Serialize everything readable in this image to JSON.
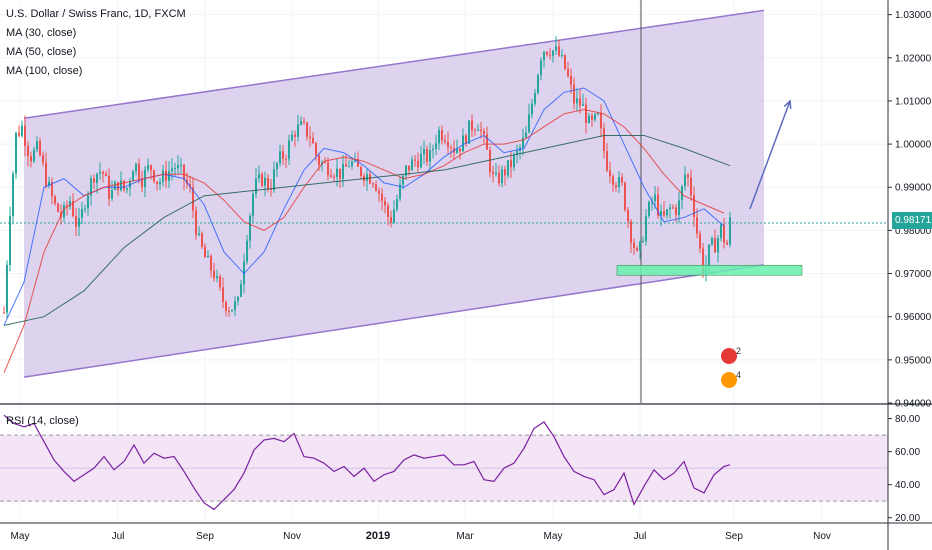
{
  "legend": {
    "title": "U.S. Dollar / Swiss Franc, 1D, FXCM",
    "ma30": "MA (30, close)",
    "ma50": "MA (50, close)",
    "ma100": "MA (100, close)",
    "rsi": "RSI (14, close)"
  },
  "last_price": "0.98171",
  "colors": {
    "up": "#26a69a",
    "down": "#ef5350",
    "ma30": "#2962ff",
    "ma50": "#e53935",
    "ma100": "#1b5e50",
    "channel_fill": "#d1c4e9",
    "channel_line": "#9575cd",
    "support_zone": "#69f0ae",
    "arrow": "#5c6bc0",
    "rsi_line": "#7b1fa2",
    "rsi_band": "#f3e5f5"
  },
  "event_badges": [
    "2",
    "4"
  ],
  "chart_data": {
    "type": "candlestick",
    "title": "U.S. Dollar / Swiss Franc, 1D, FXCM",
    "x_ticks": [
      "May",
      "Jul",
      "Sep",
      "Nov",
      "2019",
      "Mar",
      "May",
      "Jul",
      "Sep",
      "Nov"
    ],
    "y_ticks": [
      "1.03000",
      "1.02000",
      "1.01000",
      "1.00000",
      "0.99000",
      "0.98000",
      "0.97000",
      "0.96000",
      "0.95000",
      "0.94000"
    ],
    "ylim": [
      0.94,
      1.032
    ],
    "last_price": 0.98171,
    "close_path": [
      [
        0,
        0.961
      ],
      [
        6,
        0.985
      ],
      [
        12,
        1.002
      ],
      [
        18,
        1.004
      ],
      [
        26,
        0.997
      ],
      [
        34,
        0.999
      ],
      [
        42,
        0.992
      ],
      [
        50,
        0.986
      ],
      [
        58,
        0.983
      ],
      [
        66,
        0.987
      ],
      [
        74,
        0.98
      ],
      [
        82,
        0.988
      ],
      [
        90,
        0.993
      ],
      [
        98,
        0.994
      ],
      [
        106,
        0.988
      ],
      [
        114,
        0.991
      ],
      [
        122,
        0.989
      ],
      [
        130,
        0.996
      ],
      [
        138,
        0.992
      ],
      [
        146,
        0.995
      ],
      [
        154,
        0.991
      ],
      [
        162,
        0.993
      ],
      [
        170,
        0.995
      ],
      [
        178,
        0.993
      ],
      [
        186,
        0.989
      ],
      [
        194,
        0.978
      ],
      [
        202,
        0.973
      ],
      [
        210,
        0.97
      ],
      [
        218,
        0.964
      ],
      [
        226,
        0.962
      ],
      [
        234,
        0.963
      ],
      [
        242,
        0.978
      ],
      [
        250,
        0.99
      ],
      [
        258,
        0.992
      ],
      [
        266,
        0.99
      ],
      [
        274,
        0.996
      ],
      [
        282,
        0.998
      ],
      [
        290,
        1.003
      ],
      [
        298,
        1.004
      ],
      [
        306,
        1.002
      ],
      [
        314,
        0.996
      ],
      [
        322,
        0.995
      ],
      [
        330,
        0.994
      ],
      [
        338,
        0.993
      ],
      [
        346,
        0.996
      ],
      [
        354,
        0.994
      ],
      [
        362,
        0.993
      ],
      [
        370,
        0.992
      ],
      [
        378,
        0.987
      ],
      [
        386,
        0.982
      ],
      [
        394,
        0.988
      ],
      [
        402,
        0.994
      ],
      [
        410,
        0.996
      ],
      [
        418,
        0.997
      ],
      [
        426,
        0.997
      ],
      [
        434,
        1.003
      ],
      [
        442,
        1.002
      ],
      [
        450,
        0.999
      ],
      [
        458,
        1.0
      ],
      [
        466,
        1.004
      ],
      [
        474,
        1.005
      ],
      [
        482,
        0.999
      ],
      [
        490,
        0.991
      ],
      [
        498,
        0.993
      ],
      [
        506,
        0.995
      ],
      [
        514,
        0.998
      ],
      [
        522,
        1.002
      ],
      [
        530,
        1.012
      ],
      [
        538,
        1.022
      ],
      [
        546,
        1.022
      ],
      [
        554,
        1.021
      ],
      [
        562,
        1.017
      ],
      [
        570,
        1.01
      ],
      [
        578,
        1.009
      ],
      [
        586,
        1.004
      ],
      [
        594,
        1.006
      ],
      [
        602,
        0.996
      ],
      [
        610,
        0.992
      ],
      [
        618,
        0.99
      ],
      [
        626,
        0.98
      ],
      [
        634,
        0.973
      ],
      [
        642,
        0.983
      ],
      [
        650,
        0.988
      ],
      [
        658,
        0.982
      ],
      [
        666,
        0.985
      ],
      [
        674,
        0.985
      ],
      [
        682,
        0.994
      ],
      [
        688,
        0.988
      ],
      [
        694,
        0.978
      ],
      [
        700,
        0.97
      ],
      [
        706,
        0.976
      ],
      [
        712,
        0.977
      ],
      [
        718,
        0.981
      ],
      [
        722,
        0.975
      ],
      [
        726,
        0.982
      ]
    ],
    "ma30_path": [
      [
        0,
        0.958
      ],
      [
        20,
        0.968
      ],
      [
        40,
        0.99
      ],
      [
        60,
        0.992
      ],
      [
        80,
        0.988
      ],
      [
        100,
        0.99
      ],
      [
        120,
        0.99
      ],
      [
        140,
        0.992
      ],
      [
        160,
        0.993
      ],
      [
        180,
        0.992
      ],
      [
        200,
        0.986
      ],
      [
        220,
        0.975
      ],
      [
        240,
        0.97
      ],
      [
        260,
        0.975
      ],
      [
        280,
        0.985
      ],
      [
        300,
        0.994
      ],
      [
        320,
        0.999
      ],
      [
        340,
        0.998
      ],
      [
        360,
        0.995
      ],
      [
        380,
        0.991
      ],
      [
        400,
        0.99
      ],
      [
        420,
        0.993
      ],
      [
        440,
        0.997
      ],
      [
        460,
        1.0
      ],
      [
        480,
        1.002
      ],
      [
        500,
        0.998
      ],
      [
        520,
        0.999
      ],
      [
        540,
        1.008
      ],
      [
        560,
        1.012
      ],
      [
        580,
        1.013
      ],
      [
        600,
        1.01
      ],
      [
        620,
        1.0
      ],
      [
        640,
        0.99
      ],
      [
        660,
        0.982
      ],
      [
        680,
        0.983
      ],
      [
        700,
        0.985
      ],
      [
        720,
        0.981
      ]
    ],
    "ma50_path": [
      [
        0,
        0.947
      ],
      [
        20,
        0.958
      ],
      [
        40,
        0.975
      ],
      [
        60,
        0.985
      ],
      [
        80,
        0.988
      ],
      [
        100,
        0.99
      ],
      [
        120,
        0.991
      ],
      [
        140,
        0.992
      ],
      [
        160,
        0.993
      ],
      [
        180,
        0.993
      ],
      [
        200,
        0.991
      ],
      [
        220,
        0.987
      ],
      [
        240,
        0.982
      ],
      [
        260,
        0.98
      ],
      [
        280,
        0.983
      ],
      [
        300,
        0.99
      ],
      [
        320,
        0.996
      ],
      [
        340,
        0.997
      ],
      [
        360,
        0.996
      ],
      [
        380,
        0.994
      ],
      [
        400,
        0.992
      ],
      [
        420,
        0.993
      ],
      [
        440,
        0.995
      ],
      [
        460,
        0.998
      ],
      [
        480,
        1.0
      ],
      [
        500,
        1.0
      ],
      [
        520,
        1.001
      ],
      [
        540,
        1.004
      ],
      [
        560,
        1.007
      ],
      [
        580,
        1.008
      ],
      [
        600,
        1.007
      ],
      [
        620,
        1.004
      ],
      [
        640,
        0.999
      ],
      [
        660,
        0.993
      ],
      [
        680,
        0.988
      ],
      [
        700,
        0.986
      ],
      [
        720,
        0.984
      ]
    ],
    "ma100_path": [
      [
        0,
        0.958
      ],
      [
        40,
        0.96
      ],
      [
        80,
        0.966
      ],
      [
        120,
        0.976
      ],
      [
        160,
        0.983
      ],
      [
        200,
        0.988
      ],
      [
        240,
        0.989
      ],
      [
        280,
        0.99
      ],
      [
        320,
        0.991
      ],
      [
        360,
        0.992
      ],
      [
        400,
        0.993
      ],
      [
        440,
        0.994
      ],
      [
        480,
        0.996
      ],
      [
        520,
        0.998
      ],
      [
        560,
        1.0
      ],
      [
        600,
        1.002
      ],
      [
        640,
        1.002
      ],
      [
        680,
        0.999
      ],
      [
        726,
        0.995
      ]
    ],
    "channel": {
      "upper": [
        [
          20,
          1.006
        ],
        [
          760,
          1.031
        ]
      ],
      "lower": [
        [
          20,
          0.946
        ],
        [
          760,
          0.972
        ]
      ]
    },
    "support_zone": {
      "x0": 617,
      "x1": 802,
      "y_low": 0.97,
      "y_high": 0.971
    },
    "vertical_line_x": 641,
    "projection_arrow": [
      [
        750,
        0.985
      ],
      [
        790,
        1.01
      ]
    ],
    "rsi": {
      "title": "RSI (14, close)",
      "y_ticks": [
        "80.00",
        "60.00",
        "40.00",
        "20.00"
      ],
      "ylim": [
        18,
        87
      ],
      "upper_band": 70,
      "lower_band": 30,
      "values": [
        [
          0,
          82
        ],
        [
          10,
          77
        ],
        [
          20,
          75
        ],
        [
          30,
          77
        ],
        [
          40,
          66
        ],
        [
          50,
          55
        ],
        [
          60,
          48
        ],
        [
          70,
          42
        ],
        [
          80,
          46
        ],
        [
          90,
          50
        ],
        [
          100,
          57
        ],
        [
          110,
          49
        ],
        [
          120,
          54
        ],
        [
          130,
          64
        ],
        [
          140,
          53
        ],
        [
          150,
          59
        ],
        [
          160,
          56
        ],
        [
          170,
          57
        ],
        [
          180,
          48
        ],
        [
          190,
          38
        ],
        [
          200,
          29
        ],
        [
          210,
          25
        ],
        [
          220,
          31
        ],
        [
          230,
          37
        ],
        [
          240,
          47
        ],
        [
          250,
          61
        ],
        [
          260,
          67
        ],
        [
          270,
          68
        ],
        [
          280,
          66
        ],
        [
          290,
          71
        ],
        [
          300,
          57
        ],
        [
          310,
          56
        ],
        [
          320,
          53
        ],
        [
          330,
          48
        ],
        [
          340,
          51
        ],
        [
          350,
          45
        ],
        [
          360,
          50
        ],
        [
          370,
          42
        ],
        [
          380,
          46
        ],
        [
          390,
          48
        ],
        [
          400,
          55
        ],
        [
          410,
          58
        ],
        [
          420,
          56
        ],
        [
          430,
          57
        ],
        [
          440,
          58
        ],
        [
          450,
          52
        ],
        [
          460,
          52
        ],
        [
          470,
          54
        ],
        [
          480,
          43
        ],
        [
          490,
          42
        ],
        [
          500,
          50
        ],
        [
          510,
          53
        ],
        [
          520,
          62
        ],
        [
          530,
          74
        ],
        [
          540,
          78
        ],
        [
          550,
          69
        ],
        [
          560,
          57
        ],
        [
          570,
          48
        ],
        [
          580,
          45
        ],
        [
          590,
          43
        ],
        [
          600,
          34
        ],
        [
          610,
          37
        ],
        [
          620,
          47
        ],
        [
          630,
          28
        ],
        [
          640,
          39
        ],
        [
          650,
          49
        ],
        [
          660,
          43
        ],
        [
          670,
          47
        ],
        [
          680,
          54
        ],
        [
          690,
          38
        ],
        [
          700,
          35
        ],
        [
          710,
          46
        ],
        [
          720,
          51
        ],
        [
          726,
          52
        ]
      ]
    }
  }
}
